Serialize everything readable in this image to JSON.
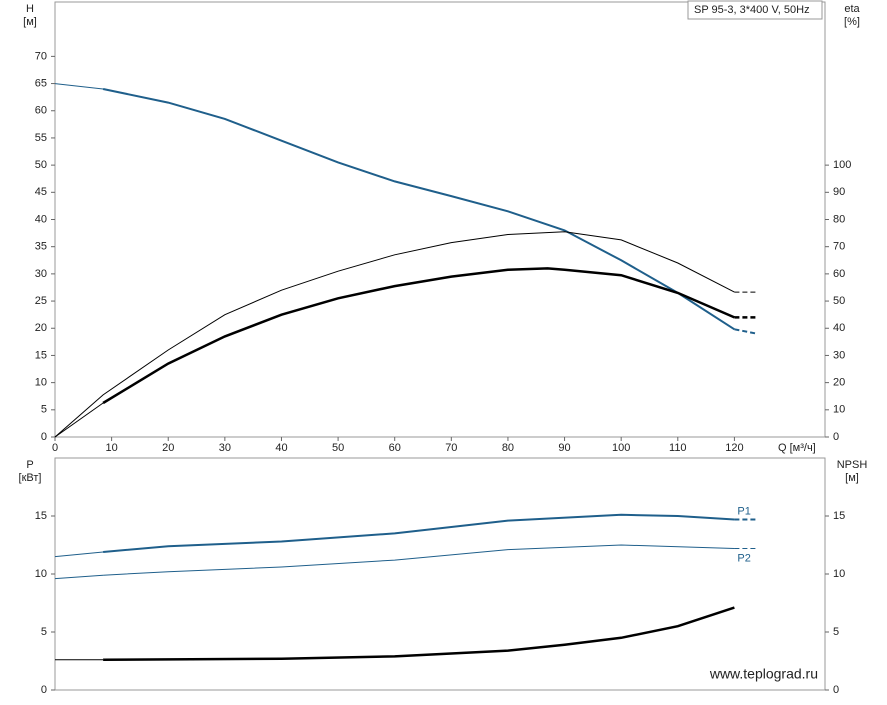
{
  "chart_data": [
    {
      "type": "line",
      "title": "SP 95-3, 3*400 V, 50Hz",
      "ylabel": "H",
      "yunit": "[м]",
      "y2label": "eta",
      "y2unit": "[%]",
      "xlabel": "Q [м³/ч]",
      "xlim": [
        0,
        136
      ],
      "xticks": [
        0,
        10,
        20,
        30,
        40,
        50,
        60,
        70,
        80,
        90,
        100,
        110,
        120
      ],
      "ylim": [
        0,
        80
      ],
      "yticks": [
        0,
        5,
        10,
        15,
        20,
        25,
        30,
        35,
        40,
        45,
        50,
        55,
        60,
        65,
        70
      ],
      "y2lim": [
        0,
        160
      ],
      "y2ticks": [
        0,
        10,
        20,
        30,
        40,
        50,
        60,
        70,
        80,
        90,
        100
      ],
      "series": [
        {
          "color": "#1f5f8b",
          "width": 1,
          "x": [
            0,
            8.5
          ],
          "values": [
            65,
            64
          ]
        },
        {
          "color": "#1f5f8b",
          "width": 2,
          "x": [
            8.5,
            20,
            30,
            40,
            50,
            60,
            70,
            80,
            90,
            100,
            110,
            120
          ],
          "values": [
            64,
            61.5,
            58.5,
            54.5,
            50.5,
            47,
            44.3,
            41.5,
            38,
            32.5,
            26.5,
            19.8
          ]
        },
        {
          "color": "#1f5f8b",
          "width": 2,
          "dash": true,
          "x": [
            120,
            124
          ],
          "values": [
            19.8,
            19
          ]
        },
        {
          "color": "#000000",
          "width": 1,
          "axis": "y2",
          "x": [
            0,
            8.5,
            20,
            30,
            40,
            50,
            60,
            70,
            80,
            90,
            100,
            110,
            120
          ],
          "values": [
            0,
            15.5,
            32,
            45,
            54,
            61,
            67,
            71.5,
            74.5,
            75.5,
            72.5,
            64,
            53.3
          ]
        },
        {
          "color": "#000000",
          "width": 1,
          "dash": true,
          "axis": "y2",
          "x": [
            120,
            124
          ],
          "values": [
            53.3,
            53.3
          ]
        },
        {
          "color": "#000000",
          "width": 1,
          "axis": "y2",
          "x": [
            0,
            8.5
          ],
          "values": [
            0,
            12.5
          ]
        },
        {
          "color": "#000000",
          "width": 2.5,
          "axis": "y2",
          "x": [
            8.5,
            20,
            30,
            40,
            50,
            60,
            70,
            80,
            87,
            90,
            100,
            110,
            120
          ],
          "values": [
            12.5,
            27,
            37,
            45,
            51,
            55.5,
            59,
            61.5,
            62,
            61.5,
            59.5,
            53,
            44
          ]
        },
        {
          "color": "#000000",
          "width": 2.5,
          "dash": true,
          "axis": "y2",
          "x": [
            120,
            124
          ],
          "values": [
            44,
            44
          ]
        }
      ]
    },
    {
      "type": "line",
      "ylabel": "P",
      "yunit": "[кВт]",
      "y2label": "NPSH",
      "y2unit": "[м]",
      "xlim": [
        0,
        136
      ],
      "ylim": [
        0,
        20
      ],
      "yticks": [
        0,
        5,
        10,
        15
      ],
      "y2lim": [
        0,
        20
      ],
      "y2ticks": [
        0,
        5,
        10,
        15
      ],
      "watermark": "www.teplograd.ru",
      "series": [
        {
          "color": "#1f5f8b",
          "width": 1,
          "x": [
            0,
            8.5
          ],
          "values": [
            11.5,
            11.9
          ]
        },
        {
          "name": "P1",
          "color": "#1f5f8b",
          "width": 2,
          "x": [
            8.5,
            20,
            40,
            60,
            80,
            100,
            110,
            120
          ],
          "values": [
            11.9,
            12.4,
            12.8,
            13.5,
            14.6,
            15.1,
            15,
            14.7
          ]
        },
        {
          "color": "#1f5f8b",
          "width": 2,
          "dash": true,
          "x": [
            120,
            124
          ],
          "values": [
            14.7,
            14.7
          ]
        },
        {
          "color": "#1f5f8b",
          "width": 1,
          "x": [
            0,
            8.5
          ],
          "values": [
            9.6,
            9.9
          ]
        },
        {
          "name": "P2",
          "color": "#1f5f8b",
          "width": 1,
          "x": [
            8.5,
            20,
            40,
            60,
            80,
            100,
            120
          ],
          "values": [
            9.9,
            10.2,
            10.6,
            11.2,
            12.1,
            12.5,
            12.2
          ]
        },
        {
          "color": "#1f5f8b",
          "width": 1,
          "dash": true,
          "x": [
            120,
            124
          ],
          "values": [
            12.2,
            12.2
          ]
        },
        {
          "color": "#000000",
          "width": 1,
          "axis": "y2",
          "x": [
            0,
            8.5
          ],
          "values": [
            2.6,
            2.6
          ]
        },
        {
          "color": "#000000",
          "width": 2.5,
          "axis": "y2",
          "x": [
            8.5,
            40,
            60,
            80,
            90,
            100,
            110,
            120
          ],
          "values": [
            2.6,
            2.7,
            2.9,
            3.4,
            3.9,
            4.5,
            5.5,
            7.1
          ]
        }
      ]
    }
  ]
}
